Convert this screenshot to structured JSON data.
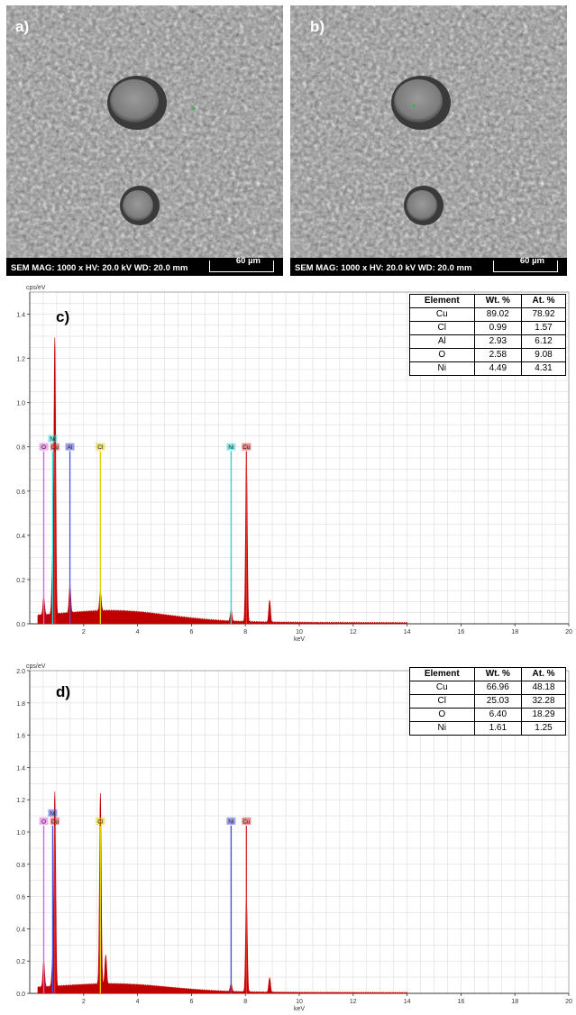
{
  "sem_panels": [
    {
      "label": "a)",
      "info": "SEM  MAG: 1000 x  HV: 20.0 kV  WD: 20.0 mm",
      "scale": "60 µm"
    },
    {
      "label": "b)",
      "info": "SEM  MAG: 1000 x  HV: 20.0 kV  WD: 20.0 mm",
      "scale": "60 µm"
    }
  ],
  "spectra": [
    {
      "panel_label": "c)",
      "ytitle": "cps/eV",
      "xtitle": "keV",
      "table": {
        "headers": [
          "Element",
          "Wt. %",
          "At. %"
        ],
        "rows": [
          [
            "Cu",
            "89.02",
            "78.92"
          ],
          [
            "Cl",
            "0.99",
            "1.57"
          ],
          [
            "Al",
            "2.93",
            "6.12"
          ],
          [
            "O",
            "2.58",
            "9.08"
          ],
          [
            "Ni",
            "4.49",
            "4.31"
          ]
        ]
      }
    },
    {
      "panel_label": "d)",
      "ytitle": "cps/eV",
      "xtitle": "keV",
      "table": {
        "headers": [
          "Element",
          "Wt. %",
          "At. %"
        ],
        "rows": [
          [
            "Cu",
            "66.96",
            "48.18"
          ],
          [
            "Cl",
            "25.03",
            "32.28"
          ],
          [
            "O",
            "6.40",
            "18.29"
          ],
          [
            "Ni",
            "1.61",
            "1.25"
          ]
        ]
      }
    }
  ],
  "chart_data": [
    {
      "type": "line",
      "title": "",
      "xlabel": "keV",
      "ylabel": "cps/eV",
      "xlim": [
        0,
        20
      ],
      "ylim": [
        0,
        1.5
      ],
      "xticks": [
        2,
        4,
        6,
        8,
        10,
        12,
        14,
        16,
        18,
        20
      ],
      "yticks": [
        0.0,
        0.2,
        0.4,
        0.6,
        0.8,
        1.0,
        1.2,
        1.4
      ],
      "grid": true,
      "color": "#c00000",
      "peaks": [
        {
          "x": 0.52,
          "y": 0.08
        },
        {
          "x": 0.85,
          "y": 0.24
        },
        {
          "x": 0.93,
          "y": 1.24
        },
        {
          "x": 1.49,
          "y": 0.12
        },
        {
          "x": 2.62,
          "y": 0.09
        },
        {
          "x": 7.47,
          "y": 0.05
        },
        {
          "x": 8.04,
          "y": 0.73
        },
        {
          "x": 8.9,
          "y": 0.1
        }
      ],
      "markers": [
        {
          "label": "O",
          "x": 0.52,
          "color": "#e060e0"
        },
        {
          "label": "Ni",
          "x": 0.85,
          "color": "#30d8d8"
        },
        {
          "label": "Cu",
          "x": 0.93,
          "color": "#e03030"
        },
        {
          "label": "Al",
          "x": 1.49,
          "color": "#5050e0"
        },
        {
          "label": "Cl",
          "x": 2.62,
          "color": "#e0d000"
        },
        {
          "label": "Ni",
          "x": 7.47,
          "color": "#30d8d8"
        },
        {
          "label": "Cu",
          "x": 8.04,
          "color": "#e03030"
        }
      ]
    },
    {
      "type": "line",
      "title": "",
      "xlabel": "keV",
      "ylabel": "cps/eV",
      "xlim": [
        0,
        20
      ],
      "ylim": [
        0,
        2.0
      ],
      "xticks": [
        2,
        4,
        6,
        8,
        10,
        12,
        14,
        16,
        18,
        20
      ],
      "yticks": [
        0.0,
        0.2,
        0.4,
        0.6,
        0.8,
        1.0,
        1.2,
        1.4,
        1.6,
        1.8,
        2.0
      ],
      "grid": true,
      "color": "#c00000",
      "peaks": [
        {
          "x": 0.52,
          "y": 0.16
        },
        {
          "x": 0.85,
          "y": 0.15
        },
        {
          "x": 0.93,
          "y": 1.2
        },
        {
          "x": 2.62,
          "y": 1.18
        },
        {
          "x": 2.82,
          "y": 0.18
        },
        {
          "x": 7.47,
          "y": 0.05
        },
        {
          "x": 8.04,
          "y": 0.58
        },
        {
          "x": 8.9,
          "y": 0.09
        }
      ],
      "markers": [
        {
          "label": "O",
          "x": 0.52,
          "color": "#e060e0"
        },
        {
          "label": "Ni",
          "x": 0.85,
          "color": "#5050e0"
        },
        {
          "label": "Cu",
          "x": 0.93,
          "color": "#e03030"
        },
        {
          "label": "Cl",
          "x": 2.62,
          "color": "#e0d000"
        },
        {
          "label": "Ni",
          "x": 7.47,
          "color": "#5050e0"
        },
        {
          "label": "Cu",
          "x": 8.04,
          "color": "#e03030"
        }
      ]
    }
  ]
}
